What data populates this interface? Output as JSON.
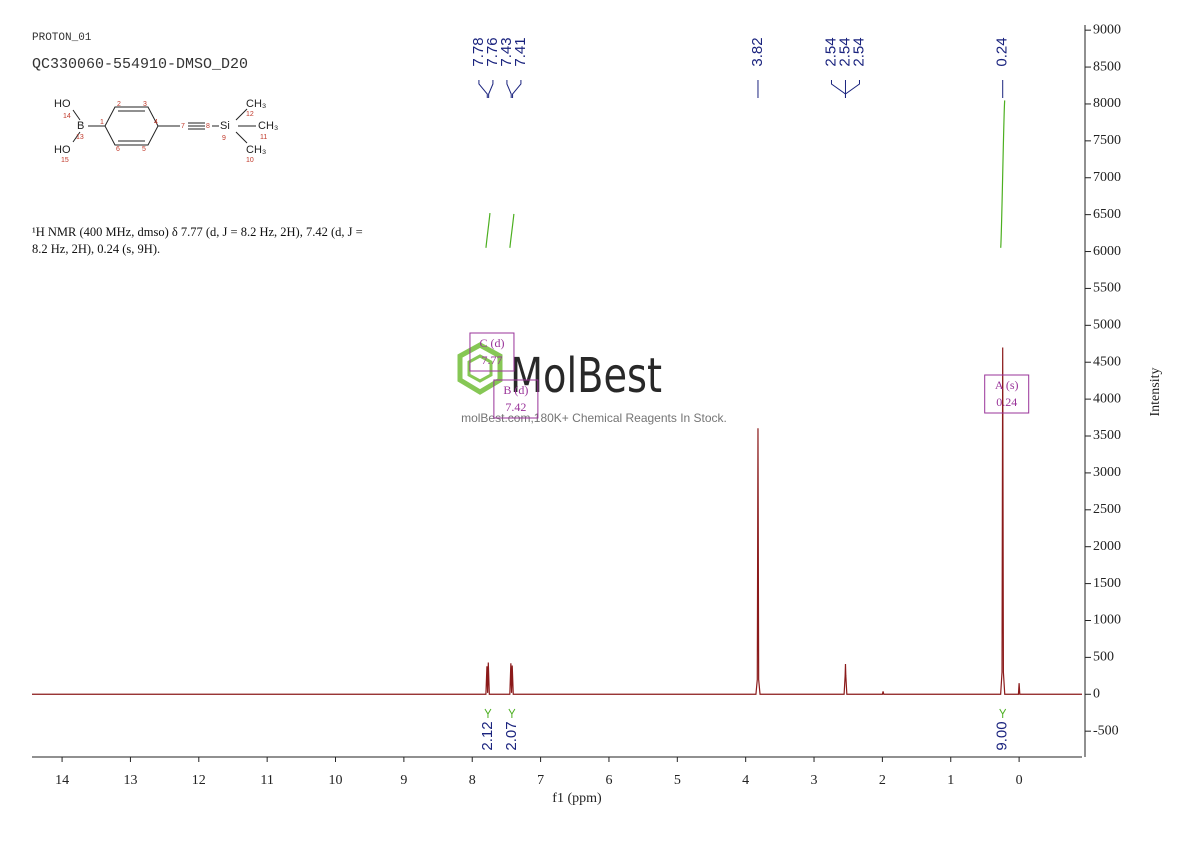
{
  "header": {
    "experiment": "PROTON_01",
    "sample": "QC330060-554910-DMSO_D20"
  },
  "structure": {
    "labels": [
      "HO",
      "14",
      "B",
      "13",
      "HO",
      "15",
      "1",
      "2",
      "3",
      "4",
      "5",
      "6",
      "7",
      "8",
      "Si",
      "9",
      "CH₃",
      "12",
      "CH₃",
      "11",
      "CH₃",
      "10"
    ]
  },
  "nmr_text": "¹H NMR (400 MHz, dmso) δ 7.77 (d, J = 8.2 Hz, 2H), 7.42 (d, J = 8.2 Hz, 2H), 0.24 (s, 9H).",
  "watermark": {
    "brand": "MolBest",
    "tagline": "molBest.com,180K+ Chemical Reagents In Stock."
  },
  "chart_data": {
    "type": "line",
    "x_label": "f1 (ppm)",
    "y_label": "Intensity",
    "xlim": [
      14.44,
      -0.92
    ],
    "xticks": [
      14,
      13,
      12,
      11,
      10,
      9,
      8,
      7,
      6,
      5,
      4,
      3,
      2,
      1,
      0
    ],
    "ylim": [
      -850,
      9070
    ],
    "yticks": [
      -500,
      0,
      500,
      1000,
      1500,
      2000,
      2500,
      3000,
      3500,
      4000,
      4500,
      5000,
      5500,
      6000,
      6500,
      7000,
      7500,
      8000,
      8500,
      9000
    ],
    "series": [
      {
        "color": "#8b1a1a",
        "x": [
          14.44,
          8.3,
          7.8,
          7.785,
          7.775,
          7.765,
          7.75,
          7.45,
          7.435,
          7.425,
          7.415,
          7.4,
          3.85,
          3.83,
          3.82,
          3.81,
          3.79,
          2.56,
          2.545,
          2.54,
          2.535,
          2.52,
          2.0,
          1.99,
          1.98,
          0.27,
          0.25,
          0.24,
          0.23,
          0.21,
          0.01,
          0.0,
          -0.01,
          -0.92
        ],
        "values": [
          0,
          0,
          0,
          380,
          20,
          430,
          0,
          0,
          420,
          20,
          390,
          0,
          0,
          200,
          3605,
          200,
          0,
          0,
          250,
          410,
          250,
          0,
          0,
          40,
          0,
          0,
          300,
          4700,
          300,
          0,
          0,
          150,
          0,
          0
        ]
      }
    ],
    "peak_labels": [
      7.78,
      7.76,
      7.43,
      7.41,
      3.82,
      2.54,
      2.54,
      2.54,
      0.24
    ],
    "peak_label_color": "#1a237e",
    "integrals": [
      {
        "center": 7.77,
        "value": 2.12
      },
      {
        "center": 7.42,
        "value": 2.07
      },
      {
        "center": 0.24,
        "value": 9.0,
        "label": "9.00"
      }
    ],
    "integral_color": "#4caf20",
    "multiplets": [
      {
        "label": "C (d)",
        "shift": 7.77
      },
      {
        "label": "B (d)",
        "shift": 7.42
      },
      {
        "label": "A (s)",
        "shift": 0.24
      }
    ],
    "multiplet_color": "#993399"
  }
}
